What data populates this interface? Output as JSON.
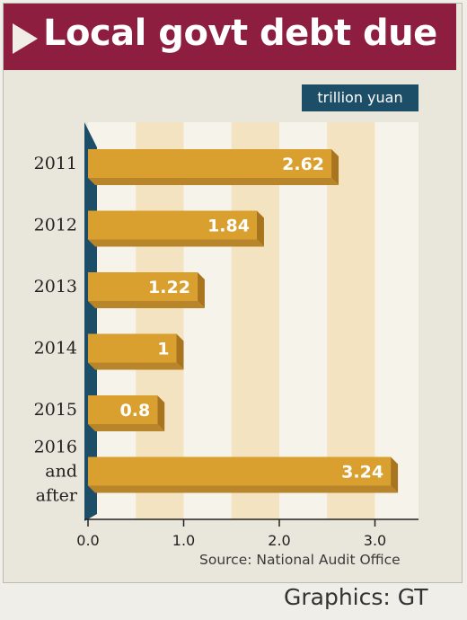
{
  "title": "Local govt debt due",
  "unit_label": "trillion yuan",
  "source": "Source: National Audit Office",
  "credit": "Graphics: GT",
  "colors": {
    "title_bg": "#8e1e3f",
    "bar": "#d9a02f",
    "unit_bg": "#1d4e68",
    "axis": "#1d4e68",
    "band_light": "#f6f3ea",
    "band_tan": "#f4e3c1"
  },
  "chart_data": {
    "type": "bar",
    "orientation": "horizontal",
    "title": "Local govt debt due",
    "xlabel": "trillion yuan",
    "ylabel": "",
    "categories": [
      "2011",
      "2012",
      "2013",
      "2014",
      "2015",
      "2016 and after"
    ],
    "values": [
      2.62,
      1.84,
      1.22,
      1,
      0.8,
      3.24
    ],
    "value_labels": [
      "2.62",
      "1.84",
      "1.22",
      "1",
      "0.8",
      "3.24"
    ],
    "xlim": [
      0,
      3.5
    ],
    "x_ticks": [
      0,
      1,
      2,
      3
    ],
    "x_tick_labels": [
      "0.0",
      "1.0",
      "2.0",
      "3.0"
    ],
    "grid": true
  }
}
